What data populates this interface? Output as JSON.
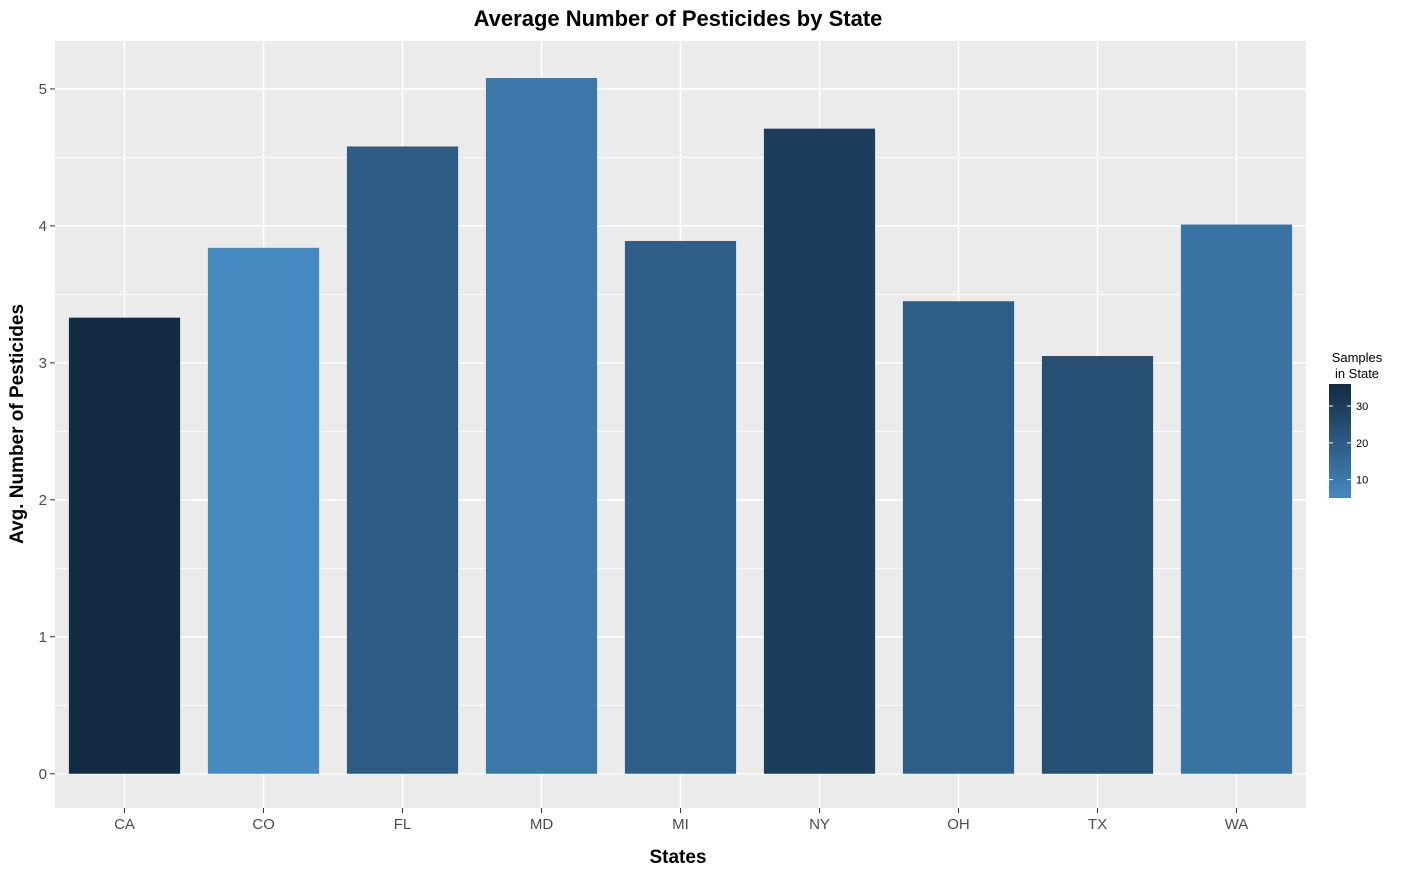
{
  "chart_data": {
    "type": "bar",
    "title": "Average Number of Pesticides by State",
    "xlabel": "States",
    "ylabel": "Avg. Number of Pesticides",
    "categories": [
      "CA",
      "CO",
      "FL",
      "MD",
      "MI",
      "NY",
      "OH",
      "TX",
      "WA"
    ],
    "values": [
      3.33,
      3.84,
      4.58,
      5.08,
      3.89,
      4.71,
      3.45,
      3.05,
      4.01
    ],
    "fill_values": [
      36,
      5,
      20,
      11,
      19,
      30,
      19,
      24,
      12
    ],
    "ylim": [
      -0.25,
      5.35
    ],
    "yticks": [
      0,
      1,
      2,
      3,
      4,
      5
    ],
    "grid": true,
    "background_color": "#ebebeb",
    "grid_color": "#ffffff",
    "legend": {
      "title_lines": [
        "Samples",
        "in State"
      ],
      "placement": "right",
      "ticks": [
        10,
        20,
        30
      ],
      "range": [
        5,
        36
      ],
      "color_low": "#4489c0",
      "color_high": "#132b43"
    }
  }
}
